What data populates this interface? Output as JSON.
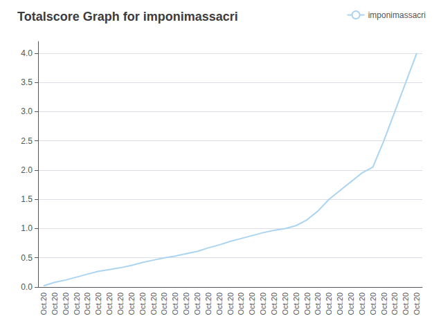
{
  "chart_data": {
    "type": "line",
    "title": "Totalscore Graph for imponimassacri",
    "categories": [
      "Oct.20",
      "Oct.20",
      "Oct.20",
      "Oct.20",
      "Oct.20",
      "Oct.20",
      "Oct.20",
      "Oct.20",
      "Oct.20",
      "Oct.20",
      "Oct.20",
      "Oct.20",
      "Oct.20",
      "Oct.20",
      "Oct.20",
      "Oct.20",
      "Oct.20",
      "Oct.20",
      "Oct.20",
      "Oct.20",
      "Oct.20",
      "Oct.20",
      "Oct.20",
      "Oct.20",
      "Oct.20",
      "Oct.20",
      "Oct.20",
      "Oct.20",
      "Oct.20",
      "Oct.20",
      "Oct.20",
      "Oct.20",
      "Oct.20",
      "Oct.20",
      "Oct.20"
    ],
    "series": [
      {
        "name": "imponimassacri",
        "color": "#aad4f0",
        "values": [
          0.02,
          0.08,
          0.12,
          0.17,
          0.22,
          0.27,
          0.3,
          0.33,
          0.37,
          0.42,
          0.46,
          0.5,
          0.53,
          0.57,
          0.61,
          0.67,
          0.72,
          0.78,
          0.83,
          0.88,
          0.93,
          0.97,
          1.0,
          1.05,
          1.15,
          1.3,
          1.5,
          1.65,
          1.8,
          1.95,
          2.05,
          2.5,
          3.0,
          3.5,
          4.0
        ]
      }
    ],
    "ylim": [
      0.0,
      4.2
    ],
    "yticks": [
      {
        "value": 0,
        "label": "0.0"
      },
      0.5,
      {
        "value": 1,
        "label": "1.0"
      },
      1.5,
      {
        "value": 2,
        "label": "2.0"
      },
      2.5,
      {
        "value": 3,
        "label": "3.0"
      },
      3.5,
      {
        "value": 4,
        "label": "4.0"
      }
    ],
    "grid": true,
    "legend": "upper right"
  }
}
